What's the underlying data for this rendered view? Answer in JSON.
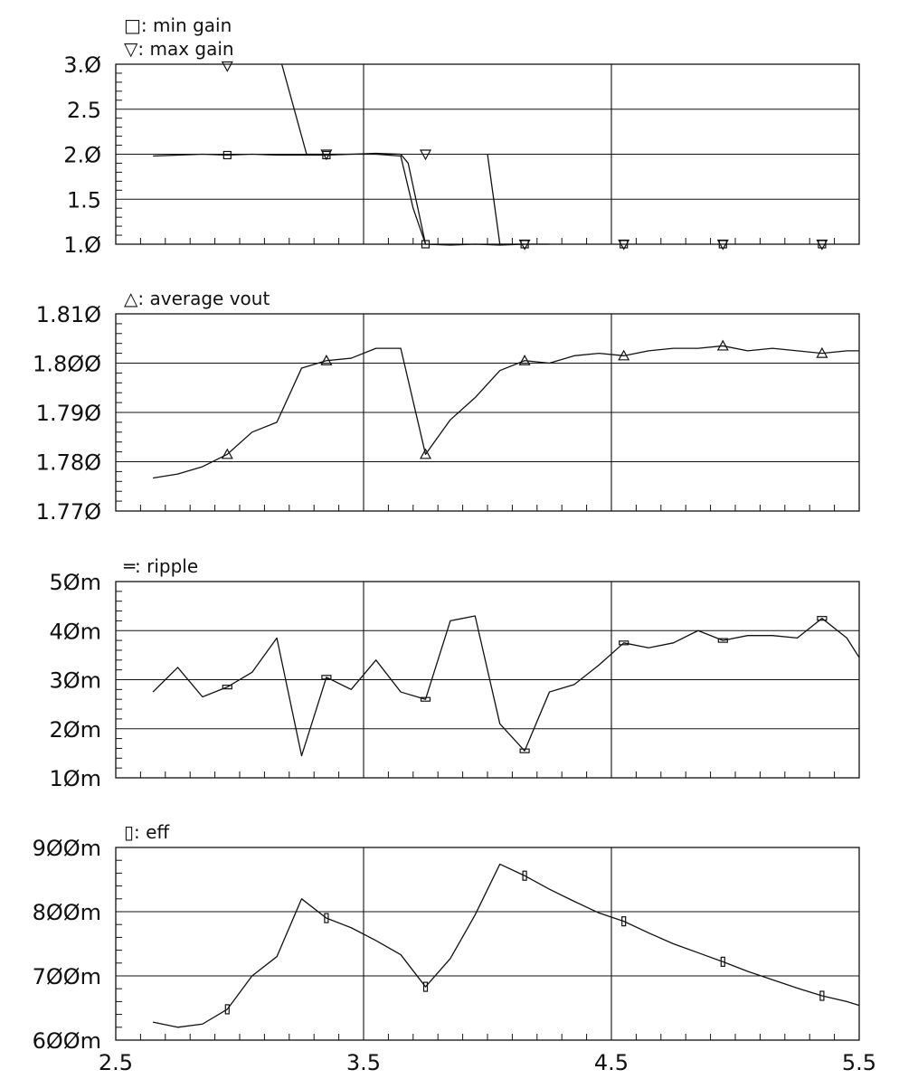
{
  "chart_data": [
    {
      "type": "line",
      "ylim": [
        1.0,
        3.0
      ],
      "xlim": [
        2.5,
        5.5
      ],
      "yticks": [
        1.0,
        1.5,
        2.0,
        2.5,
        3.0
      ],
      "ytick_labels": [
        "1.Ø",
        "1.5",
        "2.Ø",
        "2.5",
        "3.Ø"
      ],
      "grid": true,
      "legend": [
        {
          "symbol": "□",
          "label": "min gain"
        },
        {
          "symbol": "▽",
          "label": "max gain"
        }
      ],
      "series": [
        {
          "name": "min gain",
          "marker": "square",
          "x": [
            2.65,
            2.75,
            2.85,
            2.95,
            3.05,
            3.15,
            3.25,
            3.35,
            3.45,
            3.55,
            3.65,
            3.7,
            3.75,
            3.85,
            3.95,
            4.05,
            4.15,
            4.25
          ],
          "y": [
            1.98,
            1.99,
            2.0,
            1.99,
            2.0,
            1.99,
            1.99,
            1.99,
            2.0,
            2.0,
            1.98,
            1.4,
            1.0,
            0.99,
            1.0,
            0.99,
            1.0,
            1.0
          ],
          "marker_x": [
            2.95,
            3.35,
            3.75,
            4.15,
            4.55,
            4.95,
            5.35
          ],
          "marker_y": [
            1.99,
            1.99,
            1.0,
            1.0,
            1.0,
            1.0,
            1.0
          ]
        },
        {
          "name": "max gain",
          "marker": "triangle-down",
          "x": [
            3.17,
            3.27,
            3.45,
            3.55,
            3.65,
            3.68,
            3.75,
            4.0,
            4.05,
            4.15
          ],
          "y": [
            3.0,
            2.0,
            2.0,
            2.01,
            2.0,
            1.9,
            1.0,
            2.0,
            1.0,
            1.0
          ],
          "segments": [
            [
              0,
              1
            ],
            [
              1,
              2,
              3,
              4,
              5,
              6
            ],
            [
              7,
              8,
              9
            ]
          ],
          "marker_x": [
            2.95,
            3.35,
            3.75,
            4.15,
            4.55,
            4.95,
            5.35
          ],
          "marker_y": [
            2.98,
            2.0,
            2.0,
            1.0,
            1.0,
            1.0,
            1.0
          ]
        }
      ]
    },
    {
      "type": "line",
      "ylim": [
        1.77,
        1.81
      ],
      "xlim": [
        2.5,
        5.5
      ],
      "yticks": [
        1.77,
        1.78,
        1.79,
        1.8,
        1.81
      ],
      "ytick_labels": [
        "1.77Ø",
        "1.78Ø",
        "1.79Ø",
        "1.8ØØ",
        "1.81Ø"
      ],
      "grid": true,
      "legend": [
        {
          "symbol": "△",
          "label": "average vout"
        }
      ],
      "series": [
        {
          "name": "average vout",
          "marker": "triangle-up",
          "x": [
            2.65,
            2.75,
            2.85,
            2.95,
            3.05,
            3.15,
            3.25,
            3.35,
            3.45,
            3.55,
            3.65,
            3.75,
            3.85,
            3.95,
            4.05,
            4.15,
            4.25,
            4.35,
            4.45,
            4.55,
            4.65,
            4.75,
            4.85,
            4.95,
            5.05,
            5.15,
            5.25,
            5.35,
            5.45,
            5.5
          ],
          "y": [
            1.7767,
            1.7775,
            1.779,
            1.7815,
            1.786,
            1.788,
            1.799,
            1.8005,
            1.801,
            1.803,
            1.803,
            1.7815,
            1.7885,
            1.793,
            1.7985,
            1.8005,
            1.8,
            1.8015,
            1.802,
            1.8015,
            1.8025,
            1.803,
            1.803,
            1.8035,
            1.8025,
            1.803,
            1.8025,
            1.802,
            1.8025,
            1.8025
          ],
          "marker_x": [
            2.95,
            3.35,
            3.75,
            4.15,
            4.55,
            4.95,
            5.35
          ],
          "marker_y": [
            1.7815,
            1.8005,
            1.7815,
            1.8005,
            1.8015,
            1.8035,
            1.802
          ]
        }
      ]
    },
    {
      "type": "line",
      "ylim": [
        0.01,
        0.05
      ],
      "xlim": [
        2.5,
        5.5
      ],
      "yticks": [
        0.01,
        0.02,
        0.03,
        0.04,
        0.05
      ],
      "ytick_labels": [
        "1Øm",
        "2Øm",
        "3Øm",
        "4Øm",
        "5Øm"
      ],
      "grid": true,
      "legend": [
        {
          "symbol": "═",
          "label": "ripple"
        }
      ],
      "series": [
        {
          "name": "ripple",
          "marker": "flat-rect",
          "x": [
            2.65,
            2.75,
            2.85,
            2.95,
            3.05,
            3.15,
            3.25,
            3.35,
            3.45,
            3.55,
            3.65,
            3.75,
            3.85,
            3.95,
            4.05,
            4.15,
            4.25,
            4.35,
            4.45,
            4.55,
            4.65,
            4.75,
            4.85,
            4.95,
            5.05,
            5.15,
            5.25,
            5.35,
            5.45,
            5.5
          ],
          "y": [
            0.0275,
            0.0325,
            0.0265,
            0.0285,
            0.0315,
            0.0385,
            0.0145,
            0.0305,
            0.028,
            0.034,
            0.0275,
            0.026,
            0.042,
            0.043,
            0.021,
            0.0155,
            0.0275,
            0.029,
            0.033,
            0.0375,
            0.0365,
            0.0375,
            0.04,
            0.038,
            0.039,
            0.039,
            0.0385,
            0.0425,
            0.0385,
            0.0345
          ],
          "marker_x": [
            2.95,
            3.35,
            3.75,
            4.15,
            4.55,
            4.95,
            5.35
          ],
          "marker_y": [
            0.0285,
            0.0305,
            0.026,
            0.0155,
            0.0375,
            0.038,
            0.0425
          ]
        }
      ]
    },
    {
      "type": "line",
      "ylim": [
        0.6,
        0.9
      ],
      "xlim": [
        2.5,
        5.5
      ],
      "yticks": [
        0.6,
        0.7,
        0.8,
        0.9
      ],
      "ytick_labels": [
        "6ØØm",
        "7ØØm",
        "8ØØm",
        "9ØØm"
      ],
      "xticks": [
        2.5,
        3.5,
        4.5,
        5.5
      ],
      "xtick_labels": [
        "2.5",
        "3.5",
        "4.5",
        "5.5"
      ],
      "grid": true,
      "legend": [
        {
          "symbol": "▯",
          "label": "eff"
        }
      ],
      "series": [
        {
          "name": "eff",
          "marker": "tall-rect",
          "x": [
            2.65,
            2.75,
            2.85,
            2.95,
            3.05,
            3.15,
            3.25,
            3.35,
            3.45,
            3.55,
            3.65,
            3.75,
            3.85,
            3.95,
            4.05,
            4.15,
            4.25,
            4.35,
            4.45,
            4.55,
            4.65,
            4.75,
            4.85,
            4.95,
            5.05,
            5.15,
            5.25,
            5.35,
            5.45,
            5.5
          ],
          "y": [
            0.628,
            0.62,
            0.625,
            0.648,
            0.7,
            0.73,
            0.82,
            0.79,
            0.775,
            0.755,
            0.733,
            0.683,
            0.727,
            0.795,
            0.874,
            0.856,
            0.835,
            0.816,
            0.798,
            0.785,
            0.767,
            0.75,
            0.736,
            0.722,
            0.707,
            0.694,
            0.681,
            0.669,
            0.66,
            0.654
          ],
          "marker_x": [
            2.95,
            3.35,
            3.75,
            4.15,
            4.55,
            4.95,
            5.35
          ],
          "marker_y": [
            0.648,
            0.79,
            0.683,
            0.856,
            0.785,
            0.722,
            0.669
          ]
        }
      ]
    }
  ]
}
